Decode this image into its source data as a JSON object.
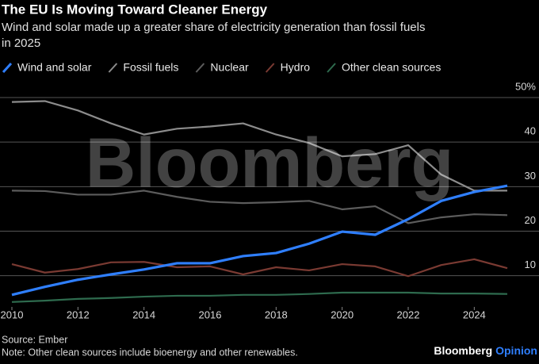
{
  "chart_data": {
    "type": "line",
    "title": "The EU Is Moving Toward Cleaner Energy",
    "subtitle": [
      "Wind and solar made up a greater share of electricity generation than fossil fuels",
      "in 2025"
    ],
    "watermark": "Bloomberg",
    "source": "Source: Ember",
    "note": "Note: Other clean sources include bioenergy and other renewables.",
    "logo": {
      "brand": "Bloomberg",
      "sub": "Opinion"
    },
    "x": [
      2010,
      2011,
      2012,
      2013,
      2014,
      2015,
      2016,
      2017,
      2018,
      2019,
      2020,
      2021,
      2022,
      2023,
      2024,
      2025
    ],
    "xlim": [
      2010,
      2025
    ],
    "xticks": [
      2010,
      2012,
      2014,
      2016,
      2018,
      2020,
      2022,
      2024
    ],
    "ylim": [
      3,
      50
    ],
    "yticks": [
      10,
      20,
      30,
      40,
      {
        "value": 50,
        "label": "50%"
      }
    ],
    "grid": true,
    "series": [
      {
        "name": "Wind and solar",
        "color": "#2f7fff",
        "values": [
          5.7,
          7.5,
          9.1,
          10.3,
          11.4,
          12.8,
          12.8,
          14.4,
          15.1,
          17.2,
          19.9,
          19.2,
          22.7,
          26.8,
          28.8,
          30.2
        ]
      },
      {
        "name": "Fossil fuels",
        "color": "#8c8c8c",
        "values": [
          49,
          49.2,
          47.1,
          44.2,
          41.7,
          43,
          43.5,
          44.2,
          41.7,
          39.8,
          36.8,
          37.3,
          39.3,
          32.7,
          29.1,
          29.1
        ]
      },
      {
        "name": "Nuclear",
        "color": "#5c5c5c",
        "values": [
          29.1,
          29,
          28.2,
          28.2,
          29.1,
          27.7,
          26.6,
          26.3,
          26.5,
          26.8,
          24.9,
          25.6,
          21.8,
          23.1,
          23.8,
          23.6
        ]
      },
      {
        "name": "Hydro",
        "color": "#7a3a32",
        "values": [
          12.6,
          10.7,
          11.5,
          13,
          13.1,
          11.9,
          12.1,
          10.3,
          11.9,
          11.2,
          12.6,
          12.1,
          9.9,
          12.4,
          13.7,
          11.7
        ]
      },
      {
        "name": "Other clean sources",
        "color": "#2e6b4e",
        "values": [
          4.1,
          4.4,
          4.8,
          5,
          5.3,
          5.5,
          5.5,
          5.7,
          5.7,
          5.9,
          6.2,
          6.2,
          6.2,
          6,
          6,
          5.9
        ]
      }
    ]
  }
}
